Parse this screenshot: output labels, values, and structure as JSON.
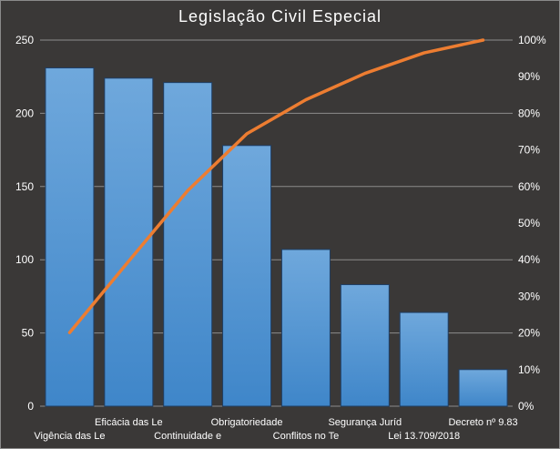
{
  "chart_data": {
    "type": "bar",
    "title": "Legislação Civil Especial",
    "categories": [
      "Vigência das Le",
      "Eficácia das Le",
      "Continuidade e",
      "Obrigatoriedade",
      "Conflitos no Te",
      "Segurança Juríd",
      "Lei 13.709/2018",
      "Decreto nº 9.83"
    ],
    "series": [
      {
        "type": "bar",
        "values": [
          231,
          224,
          221,
          178,
          107,
          83,
          64,
          25
        ],
        "color": "#5b9bd5"
      },
      {
        "type": "line",
        "axis": "right",
        "values": [
          20.1,
          39.6,
          58.9,
          74.4,
          83.7,
          90.9,
          96.5,
          100.0
        ],
        "color": "#ed7d31"
      }
    ],
    "y_left": {
      "min": 0,
      "max": 250,
      "ticks": [
        0,
        50,
        100,
        150,
        200,
        250
      ]
    },
    "y_right": {
      "min": 0,
      "max": 100,
      "ticks": [
        "0%",
        "10%",
        "20%",
        "30%",
        "40%",
        "50%",
        "60%",
        "70%",
        "80%",
        "90%",
        "100%"
      ]
    },
    "grid": true,
    "legend": "none",
    "background": "#3a3837"
  }
}
